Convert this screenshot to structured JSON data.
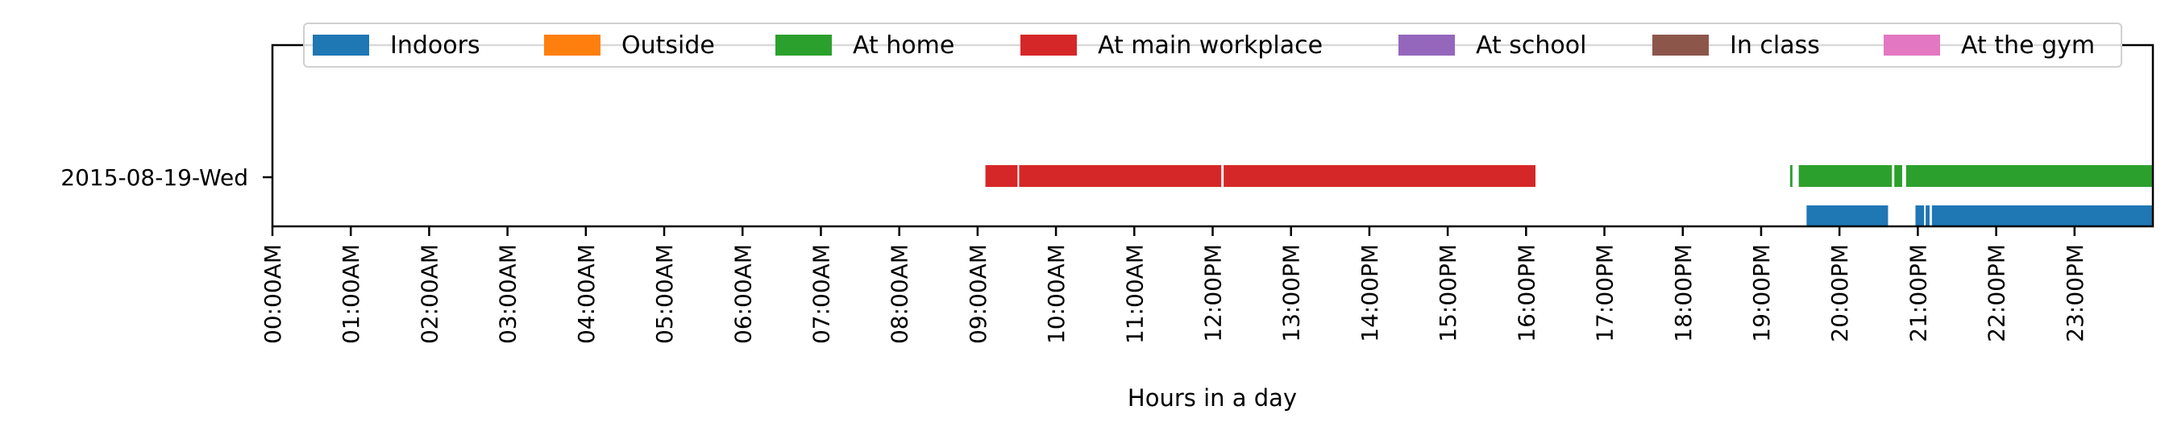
{
  "chart_data": {
    "type": "timeline",
    "xlabel": "Hours in a day",
    "xlim": [
      0,
      24
    ],
    "x_ticks": [
      "00:00AM",
      "01:00AM",
      "02:00AM",
      "03:00AM",
      "04:00AM",
      "05:00AM",
      "06:00AM",
      "07:00AM",
      "08:00AM",
      "09:00AM",
      "10:00AM",
      "11:00AM",
      "12:00PM",
      "13:00PM",
      "14:00PM",
      "15:00PM",
      "16:00PM",
      "17:00PM",
      "18:00PM",
      "19:00PM",
      "20:00PM",
      "21:00PM",
      "22:00PM",
      "23:00PM"
    ],
    "y_labels": [
      "2015-08-19-Wed"
    ],
    "legend_placement": "top-center",
    "grid": false,
    "legend": [
      {
        "label": "Indoors",
        "color": "#1f77b4"
      },
      {
        "label": "Outside",
        "color": "#ff7f0e"
      },
      {
        "label": "At home",
        "color": "#2ca02c"
      },
      {
        "label": "At main workplace",
        "color": "#d62728"
      },
      {
        "label": "At school",
        "color": "#9467bd"
      },
      {
        "label": "In class",
        "color": "#8c564b"
      },
      {
        "label": "At the gym",
        "color": "#e377c2"
      }
    ],
    "series": [
      {
        "name": "At main workplace",
        "color": "#d62728",
        "row": "2015-08-19-Wed",
        "lane": "upper",
        "segments": [
          [
            9.1,
            9.51
          ],
          [
            9.53,
            12.11
          ],
          [
            12.14,
            16.12
          ]
        ]
      },
      {
        "name": "At home",
        "color": "#2ca02c",
        "row": "2015-08-19-Wed",
        "lane": "upper",
        "segments": [
          [
            19.37,
            19.4
          ],
          [
            19.48,
            20.67
          ],
          [
            20.7,
            20.8
          ],
          [
            20.85,
            24.0
          ]
        ]
      },
      {
        "name": "Indoors",
        "color": "#1f77b4",
        "row": "2015-08-19-Wed",
        "lane": "lower",
        "segments": [
          [
            19.58,
            20.62
          ],
          [
            20.97,
            21.08
          ],
          [
            21.1,
            21.15
          ],
          [
            21.18,
            24.0
          ]
        ]
      }
    ]
  }
}
